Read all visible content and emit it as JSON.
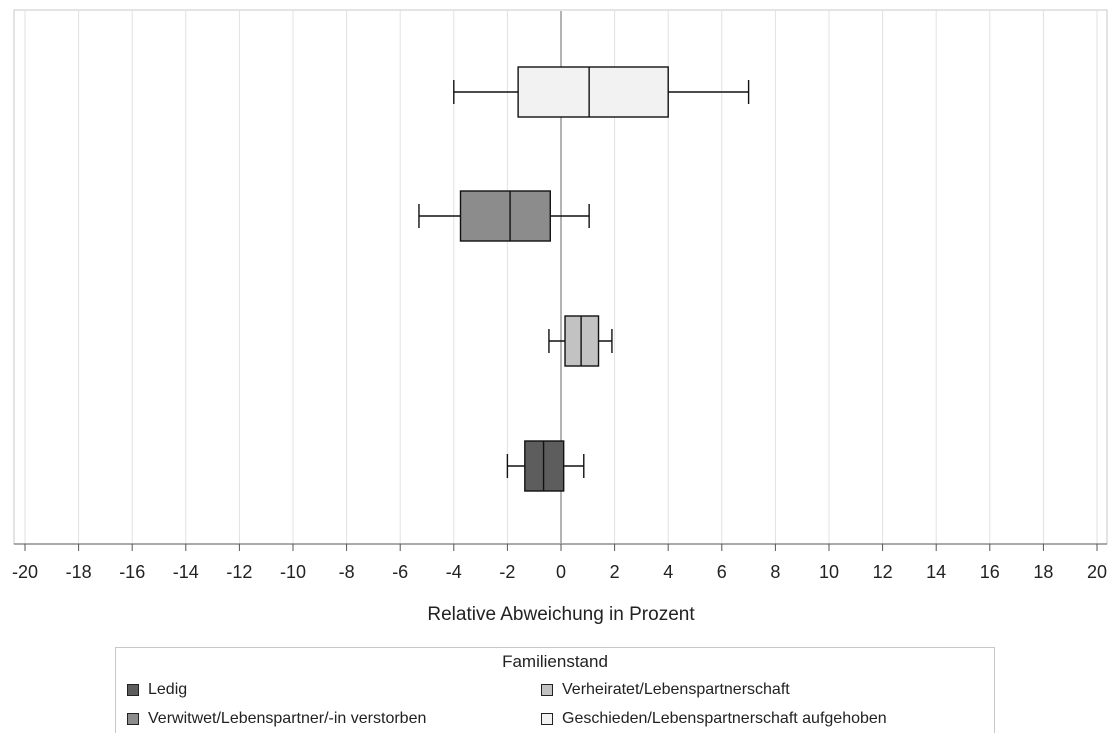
{
  "chart_data": {
    "type": "boxplot",
    "orientation": "horizontal",
    "xlabel": "Relative Abweichung in Prozent",
    "xlim": [
      -20.2,
      20.2
    ],
    "xticks": [
      -20,
      -18,
      -16,
      -14,
      -12,
      -10,
      -8,
      -6,
      -4,
      -2,
      0,
      2,
      4,
      6,
      8,
      10,
      12,
      14,
      16,
      18,
      20
    ],
    "grid": "vertical",
    "reference_line": 0,
    "legend_title": "Familienstand",
    "legend_position": "bottom",
    "series": [
      {
        "name": "Ledig",
        "color": "#5d5d5d",
        "row": 3,
        "whisker_low": -2.0,
        "q1": -1.35,
        "median": -0.65,
        "q3": 0.1,
        "whisker_high": 0.85
      },
      {
        "name": "Verheiratet/Lebenspartnerschaft",
        "color": "#c2c2c2",
        "row": 2,
        "whisker_low": -0.45,
        "q1": 0.15,
        "median": 0.75,
        "q3": 1.4,
        "whisker_high": 1.9
      },
      {
        "name": "Verwitwet/Lebenspartner/-in verstorben",
        "color": "#8c8c8c",
        "row": 1,
        "whisker_low": -5.3,
        "q1": -3.75,
        "median": -1.9,
        "q3": -0.4,
        "whisker_high": 1.05
      },
      {
        "name": "Geschieden/Lebenspartnerschaft aufgehoben",
        "color": "#f2f2f2",
        "row": 0,
        "whisker_low": -4.0,
        "q1": -1.6,
        "median": 1.05,
        "q3": 4.0,
        "whisker_high": 7.0
      }
    ]
  }
}
